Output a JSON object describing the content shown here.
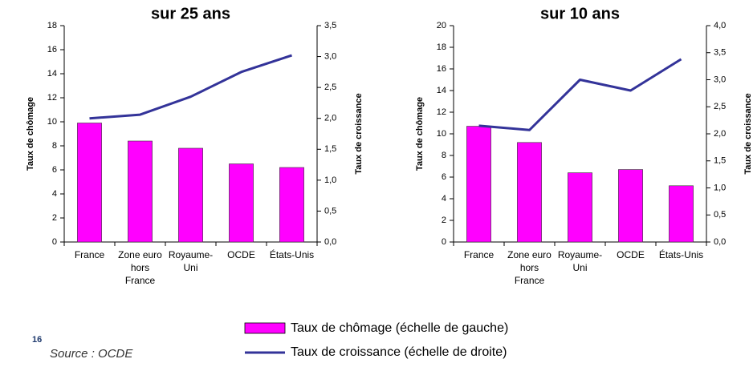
{
  "page_number": "16",
  "source": "Source : OCDE",
  "chart_data": [
    {
      "type": "bar_line",
      "title": "sur 25 ans",
      "ylabel": "Taux de chômage",
      "y2label": "Taux de croissance",
      "categories": [
        "France",
        "Zone euro hors France",
        "Royaume-Uni",
        "OCDE",
        "États-Unis"
      ],
      "ylim": [
        0,
        18
      ],
      "yticks": [
        0,
        2,
        4,
        6,
        8,
        10,
        12,
        14,
        16,
        18
      ],
      "y2lim": [
        0,
        3.5
      ],
      "y2ticks": [
        {
          "value": 0,
          "label": "0,0"
        },
        {
          "value": 0.5,
          "label": "0,5"
        },
        {
          "value": 1,
          "label": "1,0"
        },
        {
          "value": 1.5,
          "label": "1,5"
        },
        {
          "value": 2,
          "label": "2,0"
        },
        {
          "value": 2.5,
          "label": "2,5"
        },
        {
          "value": 3,
          "label": "3,0"
        },
        {
          "value": 3.5,
          "label": "3,5"
        }
      ],
      "series": [
        {
          "name": "Taux de chômage (échelle de gauche)",
          "type": "bar",
          "color": "#ff00ff",
          "values": [
            9.9,
            8.4,
            7.8,
            6.5,
            6.2
          ]
        },
        {
          "name": "Taux de croissance (échelle de droite)",
          "type": "line",
          "axis": "y2",
          "color": "#333399",
          "values": [
            2.0,
            2.06,
            2.35,
            2.75,
            3.02
          ]
        }
      ]
    },
    {
      "type": "bar_line",
      "title": "sur 10 ans",
      "ylabel": "Taux de chômage",
      "y2label": "Taux de croissance",
      "categories": [
        "France",
        "Zone euro hors France",
        "Royaume-Uni",
        "OCDE",
        "États-Unis"
      ],
      "ylim": [
        0,
        20
      ],
      "yticks": [
        0,
        2,
        4,
        6,
        8,
        10,
        12,
        14,
        16,
        18,
        20
      ],
      "y2lim": [
        0,
        4
      ],
      "y2ticks": [
        {
          "value": 0,
          "label": "0,0"
        },
        {
          "value": 0.5,
          "label": "0,5"
        },
        {
          "value": 1,
          "label": "1,0"
        },
        {
          "value": 1.5,
          "label": "1,5"
        },
        {
          "value": 2,
          "label": "2,0"
        },
        {
          "value": 2.5,
          "label": "2,5"
        },
        {
          "value": 3,
          "label": "3,0"
        },
        {
          "value": 3.5,
          "label": "3,5"
        },
        {
          "value": 4,
          "label": "4,0"
        }
      ],
      "series": [
        {
          "type": "bar",
          "color": "#ff00ff",
          "values": [
            10.7,
            9.2,
            6.4,
            6.7,
            5.2
          ]
        },
        {
          "type": "line",
          "axis": "y2",
          "color": "#333399",
          "values": [
            2.15,
            2.07,
            3.0,
            2.8,
            3.38
          ]
        }
      ]
    }
  ]
}
